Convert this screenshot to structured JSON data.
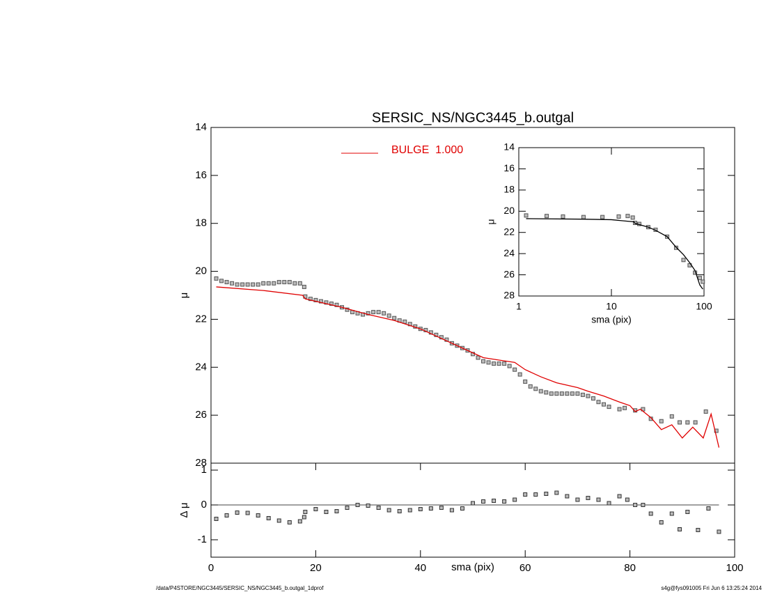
{
  "chart_data": [
    {
      "type": "scatter",
      "title": "SERSIC_NS/NGC3445_b.outgal",
      "ylabel": "μ",
      "xlim": [
        0,
        100
      ],
      "ylim": [
        28,
        14
      ],
      "yticks": [
        14,
        16,
        18,
        20,
        22,
        24,
        26,
        28
      ],
      "series": [
        {
          "color": "#555555",
          "style": "markers",
          "x": [
            1,
            2,
            3,
            4,
            5,
            6,
            7,
            8,
            9,
            10,
            11,
            12,
            13,
            14,
            15,
            16,
            17,
            17.8,
            18,
            19,
            20,
            21,
            22,
            23,
            24,
            25,
            26,
            27,
            28,
            29,
            30,
            31,
            32,
            33,
            34,
            35,
            36,
            37,
            38,
            39,
            40,
            41,
            42,
            43,
            44,
            45,
            46,
            47,
            48,
            49,
            50,
            51,
            52,
            53,
            54,
            55,
            56,
            57,
            58,
            59,
            60,
            61,
            62,
            63,
            64,
            65,
            66,
            67,
            68,
            69,
            70,
            71,
            72,
            73,
            74,
            75,
            76,
            78,
            79,
            81,
            82.5,
            84,
            86,
            88,
            89.5,
            91,
            92.5,
            94.5,
            96.5
          ],
          "values": [
            20.3,
            20.4,
            20.45,
            20.5,
            20.55,
            20.55,
            20.55,
            20.55,
            20.55,
            20.5,
            20.5,
            20.5,
            20.45,
            20.45,
            20.45,
            20.5,
            20.5,
            20.65,
            21.05,
            21.15,
            21.2,
            21.25,
            21.3,
            21.35,
            21.4,
            21.5,
            21.6,
            21.7,
            21.75,
            21.8,
            21.75,
            21.7,
            21.7,
            21.75,
            21.85,
            21.95,
            22.05,
            22.1,
            22.2,
            22.3,
            22.4,
            22.45,
            22.55,
            22.65,
            22.75,
            22.85,
            23.0,
            23.1,
            23.2,
            23.3,
            23.45,
            23.6,
            23.75,
            23.8,
            23.85,
            23.85,
            23.85,
            23.95,
            24.1,
            24.3,
            24.6,
            24.8,
            24.9,
            25.0,
            25.05,
            25.1,
            25.1,
            25.1,
            25.1,
            25.1,
            25.1,
            25.15,
            25.2,
            25.3,
            25.45,
            25.55,
            25.65,
            25.75,
            25.7,
            25.8,
            25.75,
            26.15,
            26.25,
            26.05,
            26.3,
            26.3,
            26.3,
            25.85,
            26.65
          ]
        },
        {
          "name": "BULGE  1.000",
          "color": "#e00000",
          "style": "line",
          "x": [
            1,
            10,
            17.5,
            18,
            25,
            30,
            35,
            40,
            45,
            48,
            50,
            52,
            55,
            58,
            60,
            63,
            66,
            70,
            72,
            75,
            78,
            80,
            81,
            82,
            84,
            86,
            88,
            90,
            92,
            94,
            95.5,
            97
          ],
          "values": [
            20.65,
            20.8,
            21.0,
            21.15,
            21.5,
            21.8,
            22.05,
            22.4,
            22.9,
            23.2,
            23.4,
            23.6,
            23.7,
            23.8,
            24.1,
            24.4,
            24.65,
            24.85,
            25.0,
            25.2,
            25.45,
            25.6,
            25.85,
            25.75,
            26.1,
            26.6,
            26.4,
            26.95,
            26.5,
            26.95,
            25.95,
            27.35
          ]
        }
      ]
    },
    {
      "type": "scatter",
      "ylabel": "Δ μ",
      "xlabel": "sma (pix)",
      "xlim": [
        0,
        100
      ],
      "xticks": [
        0,
        20,
        40,
        60,
        80,
        100
      ],
      "ylim": [
        -1.5,
        1.2
      ],
      "yticks": [
        -1,
        0,
        1
      ],
      "zero_line": true,
      "series": [
        {
          "color": "#333333",
          "style": "markers",
          "x": [
            1,
            3,
            5,
            7,
            9,
            11,
            13,
            15,
            17,
            17.8,
            18,
            20,
            22,
            24,
            26,
            28,
            30,
            32,
            34,
            36,
            38,
            40,
            42,
            44,
            46,
            48,
            50,
            52,
            54,
            56,
            58,
            60,
            62,
            64,
            66,
            68,
            70,
            72,
            74,
            76,
            78,
            79.5,
            81,
            82.5,
            84,
            86,
            88,
            89.5,
            91,
            93,
            95,
            97
          ],
          "values": [
            -0.4,
            -0.3,
            -0.22,
            -0.23,
            -0.3,
            -0.38,
            -0.45,
            -0.5,
            -0.47,
            -0.35,
            -0.2,
            -0.12,
            -0.2,
            -0.18,
            -0.08,
            0.0,
            -0.02,
            -0.08,
            -0.15,
            -0.18,
            -0.15,
            -0.12,
            -0.1,
            -0.08,
            -0.15,
            -0.1,
            0.05,
            0.1,
            0.12,
            0.1,
            0.15,
            0.3,
            0.3,
            0.32,
            0.35,
            0.25,
            0.15,
            0.2,
            0.15,
            0.05,
            0.25,
            0.15,
            0.0,
            0.0,
            -0.25,
            -0.5,
            -0.25,
            -0.7,
            -0.2,
            -0.72,
            -0.1,
            -0.77
          ]
        }
      ]
    },
    {
      "type": "scatter",
      "ylabel": "μ",
      "xlabel": "sma (pix)",
      "xlog": true,
      "xlim": [
        1,
        100
      ],
      "xticks": [
        1,
        10,
        100
      ],
      "ylim": [
        28,
        14
      ],
      "yticks": [
        14,
        16,
        18,
        20,
        22,
        24,
        26,
        28
      ],
      "series": [
        {
          "color": "#555555",
          "style": "markers",
          "x": [
            1.2,
            2,
            3,
            5,
            8,
            12,
            15,
            17,
            18,
            20,
            25,
            30,
            40,
            50,
            60,
            70,
            80,
            90,
            97
          ],
          "values": [
            20.4,
            20.45,
            20.5,
            20.55,
            20.55,
            20.5,
            20.45,
            20.6,
            21.1,
            21.2,
            21.5,
            21.75,
            22.4,
            23.45,
            24.6,
            25.1,
            25.8,
            26.3,
            26.65
          ]
        },
        {
          "color": "#000000",
          "style": "line",
          "x": [
            1.2,
            5,
            10,
            17.5,
            18,
            25,
            30,
            40,
            50,
            60,
            70,
            80,
            90,
            97
          ],
          "values": [
            20.7,
            20.75,
            20.8,
            21.0,
            21.15,
            21.5,
            21.8,
            22.4,
            23.4,
            24.1,
            24.85,
            25.6,
            26.95,
            27.35
          ]
        }
      ]
    }
  ],
  "footer": {
    "left": "/data/P4STORE/NGC3445/SERSIC_NS/NGC3445_b.outgal_1dprof",
    "right": "s4g@fys091005  Fri Jun  6 13:25:24 2014"
  }
}
